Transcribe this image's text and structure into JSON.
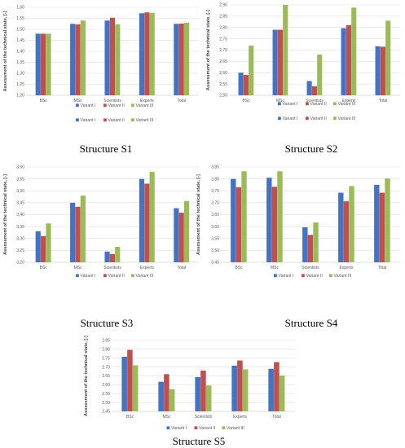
{
  "colors": {
    "series": [
      "#4472c4",
      "#c0504d",
      "#9bbb59"
    ],
    "grid": "#d9d9d9",
    "axis": "#bfbfbf"
  },
  "chart_data": [
    {
      "type": "bar",
      "caption": "Structure S1",
      "ylabel": "Assessment of the technical state, [-]",
      "categories": [
        "BSc",
        "MSc",
        "Scientists",
        "Experts",
        "Total"
      ],
      "ylim": [
        1.2,
        1.6
      ],
      "yticks": [
        "1,20",
        "1,25",
        "1,30",
        "1,35",
        "1,40",
        "1,45",
        "1,50",
        "1,55",
        "1,60"
      ],
      "grid": true,
      "legend_position": "bottom",
      "legend": [
        "Variant I",
        "Variant II",
        "Variant III"
      ],
      "legend_repeat": [
        "Variant I",
        "Variant II",
        "Variant III"
      ],
      "series": [
        {
          "name": "Variant I",
          "values": [
            1.48,
            1.525,
            1.54,
            1.573,
            1.525
          ]
        },
        {
          "name": "Variant II",
          "values": [
            1.48,
            1.523,
            1.553,
            1.577,
            1.526
          ]
        },
        {
          "name": "Variant III",
          "values": [
            1.48,
            1.54,
            1.523,
            1.575,
            1.53
          ]
        }
      ]
    },
    {
      "type": "bar",
      "caption": "Structure S2",
      "ylabel": "Assessment of the technical state, [-]",
      "categories": [
        "BSc",
        "MSc",
        "Scientists",
        "Experts",
        "Total"
      ],
      "ylim": [
        2.5,
        2.9
      ],
      "yticks": [
        "2,50",
        "2,55",
        "2,60",
        "2,65",
        "2,70",
        "2,75",
        "2,80",
        "2,85",
        "2,90"
      ],
      "grid": true,
      "legend_position": "bottom",
      "legend": [
        "Variant I",
        "Variant II",
        "Variant III"
      ],
      "legend_repeat": [
        "Variant I",
        "Variant II",
        "Variant III"
      ],
      "series": [
        {
          "name": "Variant I",
          "values": [
            2.6,
            2.79,
            2.563,
            2.797,
            2.717
          ]
        },
        {
          "name": "Variant II",
          "values": [
            2.59,
            2.79,
            2.54,
            2.81,
            2.715
          ]
        },
        {
          "name": "Variant III",
          "values": [
            2.72,
            2.9,
            2.68,
            2.888,
            2.83
          ]
        }
      ]
    },
    {
      "type": "bar",
      "caption": "Structure S3",
      "ylabel": "Assessment of the technical state, [-]",
      "categories": [
        "BSc",
        "MSc",
        "Scientists",
        "Experts",
        "Total"
      ],
      "ylim": [
        3.2,
        3.6
      ],
      "yticks": [
        "3,20",
        "3,25",
        "3,30",
        "3,35",
        "3,40",
        "3,45",
        "3,50",
        "3,55",
        "3,60"
      ],
      "grid": true,
      "legend_position": "bottom",
      "legend": [
        "Variant I",
        "Variant II",
        "Variant III"
      ],
      "series": [
        {
          "name": "Variant I",
          "values": [
            3.33,
            3.45,
            3.245,
            3.55,
            3.427
          ]
        },
        {
          "name": "Variant II",
          "values": [
            3.31,
            3.433,
            3.235,
            3.53,
            3.408
          ]
        },
        {
          "name": "Variant III",
          "values": [
            3.363,
            3.48,
            3.265,
            3.58,
            3.457
          ]
        }
      ]
    },
    {
      "type": "bar",
      "caption": "Structure S4",
      "ylabel": "Assessment of the technical state, [-]",
      "categories": [
        "BSc",
        "MSc",
        "Scientists",
        "Experts",
        "Total"
      ],
      "ylim": [
        3.45,
        3.85
      ],
      "yticks": [
        "3,45",
        "3,50",
        "3,55",
        "3,60",
        "3,65",
        "3,70",
        "3,75",
        "3,80",
        "3,85"
      ],
      "grid": true,
      "legend_position": "bottom",
      "legend": [
        "Variant I",
        "Variant II",
        "Variant III"
      ],
      "series": [
        {
          "name": "Variant I",
          "values": [
            3.8,
            3.805,
            3.597,
            3.742,
            3.775
          ]
        },
        {
          "name": "Variant II",
          "values": [
            3.765,
            3.767,
            3.565,
            3.706,
            3.742
          ]
        },
        {
          "name": "Variant III",
          "values": [
            3.832,
            3.832,
            3.617,
            3.77,
            3.802
          ]
        }
      ]
    },
    {
      "type": "bar",
      "caption": "Structure S5",
      "ylabel": "Assessment of the technical state, [-]",
      "categories": [
        "BSc",
        "MSc",
        "Scientists",
        "Experts",
        "Total"
      ],
      "ylim": [
        2.45,
        2.85
      ],
      "yticks": [
        "2.45",
        "2.50",
        "2.55",
        "2.60",
        "2.65",
        "2.70",
        "2.75",
        "2.80",
        "2.85"
      ],
      "grid": true,
      "legend_position": "bottom",
      "legend": [
        "Variant I",
        "Variant II",
        "Variant III"
      ],
      "series": [
        {
          "name": "Variant I",
          "values": [
            2.758,
            2.617,
            2.643,
            2.708,
            2.69
          ]
        },
        {
          "name": "Variant II",
          "values": [
            2.797,
            2.66,
            2.68,
            2.737,
            2.728
          ]
        },
        {
          "name": "Variant III",
          "values": [
            2.71,
            2.575,
            2.596,
            2.687,
            2.652
          ]
        }
      ]
    }
  ]
}
